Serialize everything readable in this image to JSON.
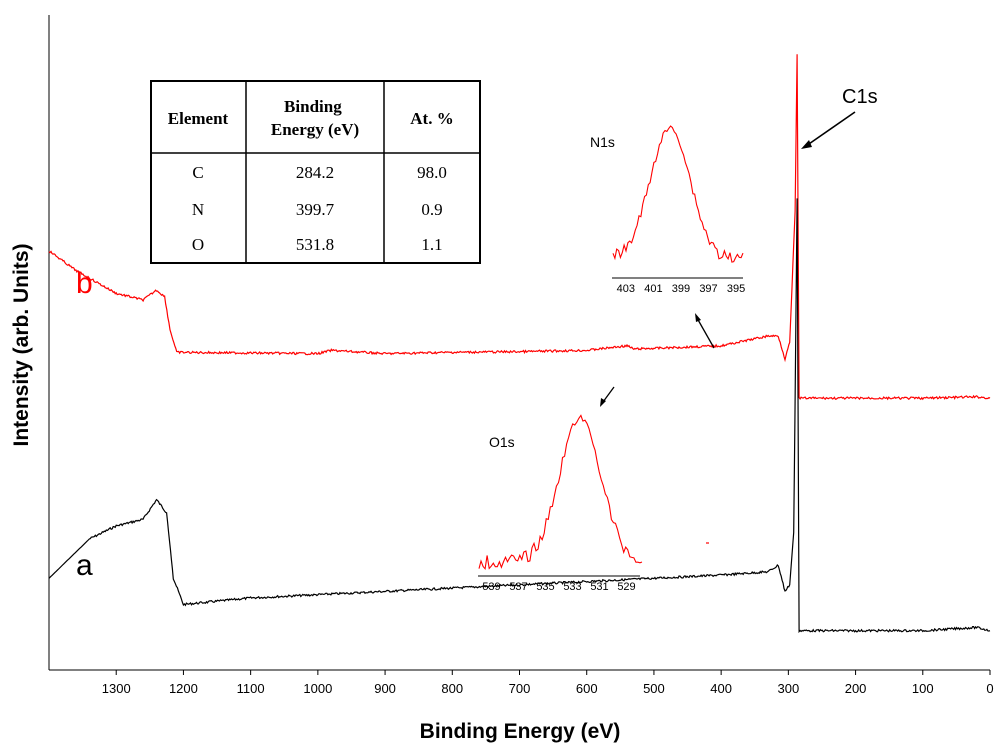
{
  "chart_data": {
    "type": "line",
    "title": "",
    "xlabel": "Binding Energy (eV)",
    "ylabel": "Intensity (arb. Units)",
    "x_reversed": true,
    "xlim": [
      1400,
      0
    ],
    "x_ticks": [
      "1300",
      "1200",
      "1100",
      "1000",
      "900",
      "800",
      "700",
      "600",
      "500",
      "400",
      "300",
      "200",
      "100",
      "0"
    ],
    "grid": false,
    "series": [
      {
        "name": "a",
        "color": "#000000",
        "description_points": [
          [
            1400,
            0.86
          ],
          [
            1340,
            0.8
          ],
          [
            1300,
            0.78
          ],
          [
            1260,
            0.77
          ],
          [
            1240,
            0.74
          ],
          [
            1225,
            0.76
          ],
          [
            1215,
            0.86
          ],
          [
            1200,
            0.9
          ],
          [
            1100,
            0.89
          ],
          [
            1000,
            0.885
          ],
          [
            900,
            0.88
          ],
          [
            800,
            0.875
          ],
          [
            700,
            0.87
          ],
          [
            600,
            0.865
          ],
          [
            540,
            0.862
          ],
          [
            500,
            0.86
          ],
          [
            400,
            0.855
          ],
          [
            330,
            0.85
          ],
          [
            315,
            0.84
          ],
          [
            305,
            0.88
          ],
          [
            298,
            0.87
          ],
          [
            292,
            0.79
          ],
          [
            287,
            0.28
          ],
          [
            284,
            0.94
          ],
          [
            200,
            0.94
          ],
          [
            100,
            0.94
          ],
          [
            20,
            0.935
          ],
          [
            0,
            0.94
          ]
        ]
      },
      {
        "name": "b",
        "color": "#ff0000",
        "description_points": [
          [
            1400,
            0.36
          ],
          [
            1360,
            0.39
          ],
          [
            1300,
            0.425
          ],
          [
            1260,
            0.435
          ],
          [
            1240,
            0.42
          ],
          [
            1228,
            0.43
          ],
          [
            1220,
            0.48
          ],
          [
            1210,
            0.515
          ],
          [
            1100,
            0.516
          ],
          [
            1000,
            0.517
          ],
          [
            980,
            0.512
          ],
          [
            900,
            0.517
          ],
          [
            800,
            0.515
          ],
          [
            700,
            0.514
          ],
          [
            600,
            0.512
          ],
          [
            540,
            0.505
          ],
          [
            530,
            0.51
          ],
          [
            400,
            0.505
          ],
          [
            330,
            0.49
          ],
          [
            315,
            0.49
          ],
          [
            305,
            0.525
          ],
          [
            298,
            0.5
          ],
          [
            290,
            0.3
          ],
          [
            287,
            0.06
          ],
          [
            284,
            0.585
          ],
          [
            200,
            0.585
          ],
          [
            100,
            0.585
          ],
          [
            20,
            0.583
          ],
          [
            0,
            0.585
          ]
        ]
      }
    ],
    "annotations": [
      "C1s"
    ],
    "insets": [
      {
        "name": "N1s",
        "color": "#ff0000",
        "x_ticks": [
          "403",
          "401",
          "399",
          "397",
          "395"
        ],
        "xlim": [
          404,
          394.5
        ]
      },
      {
        "name": "O1s",
        "color": "#ff0000",
        "x_ticks": [
          "539",
          "537",
          "535",
          "533",
          "531",
          "529"
        ],
        "xlim": [
          540,
          528
        ]
      }
    ],
    "table": {
      "headers": [
        "Element",
        "Binding Energy (eV)",
        "At. %"
      ],
      "rows": [
        [
          "C",
          "284.2",
          "98.0"
        ],
        [
          "N",
          "399.7",
          "0.9"
        ],
        [
          "O",
          "531.8",
          "1.1"
        ]
      ]
    }
  }
}
